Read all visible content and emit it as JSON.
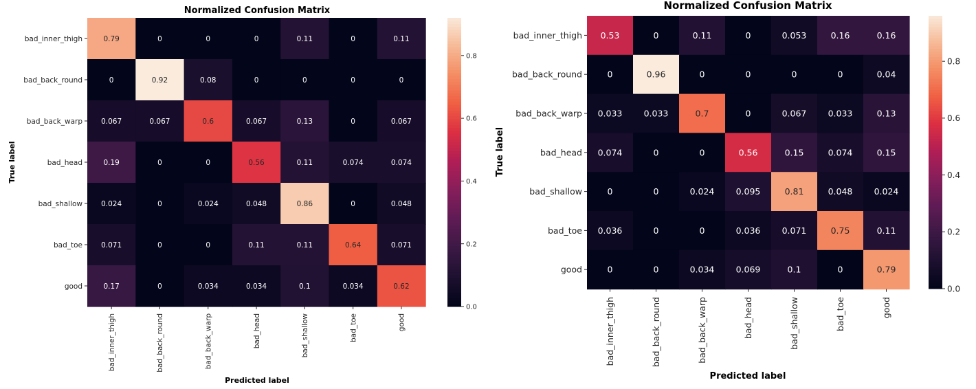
{
  "chart_data": [
    {
      "type": "heatmap",
      "title": "Normalized Confusion Matrix",
      "xlabel": "Predicted label",
      "ylabel": "True label",
      "x_categories": [
        "bad_inner_thigh",
        "bad_back_round",
        "bad_back_warp",
        "bad_head",
        "bad_shallow",
        "bad_toe",
        "good"
      ],
      "y_categories": [
        "bad_inner_thigh",
        "bad_back_round",
        "bad_back_warp",
        "bad_head",
        "bad_shallow",
        "bad_toe",
        "good"
      ],
      "values": [
        [
          0.79,
          0,
          0,
          0,
          0.11,
          0,
          0.11
        ],
        [
          0,
          0.92,
          0.08,
          0,
          0,
          0,
          0
        ],
        [
          0.067,
          0.067,
          0.6,
          0.067,
          0.13,
          0,
          0.067
        ],
        [
          0.19,
          0,
          0,
          0.56,
          0.11,
          0.074,
          0.074
        ],
        [
          0.024,
          0,
          0.024,
          0.048,
          0.86,
          0,
          0.048
        ],
        [
          0.071,
          0,
          0,
          0.11,
          0.11,
          0.64,
          0.071
        ],
        [
          0.17,
          0,
          0.034,
          0.034,
          0.1,
          0.034,
          0.62
        ]
      ],
      "colorbar": {
        "range": [
          0.0,
          0.92
        ],
        "ticks": [
          "0.0",
          "0.2",
          "0.4",
          "0.6",
          "0.8"
        ],
        "tick_values": [
          0.0,
          0.2,
          0.4,
          0.6,
          0.8
        ]
      }
    },
    {
      "type": "heatmap",
      "title": "Normalized Confusion Matrix",
      "xlabel": "Predicted label",
      "ylabel": "True label",
      "x_categories": [
        "bad_inner_thigh",
        "bad_back_round",
        "bad_back_warp",
        "bad_head",
        "bad_shallow",
        "bad_toe",
        "good"
      ],
      "y_categories": [
        "bad_inner_thigh",
        "bad_back_round",
        "bad_back_warp",
        "bad_head",
        "bad_shallow",
        "bad_toe",
        "good"
      ],
      "values": [
        [
          0.53,
          0,
          0.11,
          0,
          0.053,
          0.16,
          0.16
        ],
        [
          0,
          0.96,
          0,
          0,
          0,
          0,
          0.04
        ],
        [
          0.033,
          0.033,
          0.7,
          0,
          0.067,
          0.033,
          0.13
        ],
        [
          0.074,
          0,
          0,
          0.56,
          0.15,
          0.074,
          0.15
        ],
        [
          0,
          0,
          0.024,
          0.095,
          0.81,
          0.048,
          0.024
        ],
        [
          0.036,
          0,
          0,
          0.036,
          0.071,
          0.75,
          0.11
        ],
        [
          0,
          0,
          0.034,
          0.069,
          0.1,
          0,
          0.79
        ]
      ],
      "colorbar": {
        "range": [
          0.0,
          0.96
        ],
        "ticks": [
          "0.0",
          "0.2",
          "0.4",
          "0.6",
          "0.8"
        ],
        "tick_values": [
          0.0,
          0.2,
          0.4,
          0.6,
          0.8
        ]
      }
    }
  ]
}
